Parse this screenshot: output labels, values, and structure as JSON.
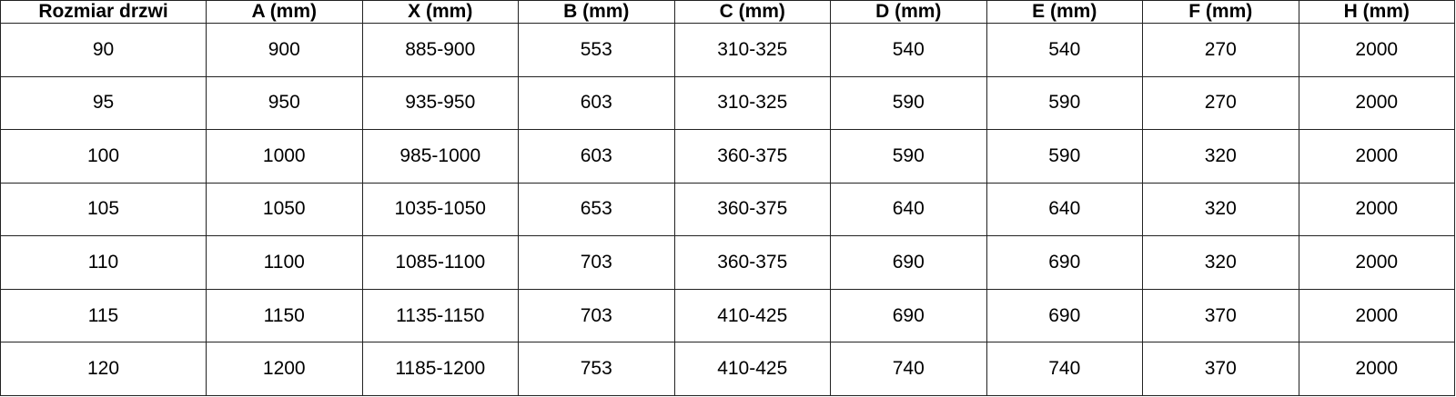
{
  "table": {
    "headers": [
      "Rozmiar drzwi",
      "A (mm)",
      "X (mm)",
      "B (mm)",
      "C (mm)",
      "D (mm)",
      "E (mm)",
      "F (mm)",
      "H (mm)"
    ],
    "rows": [
      [
        "90",
        "900",
        "885-900",
        "553",
        "310-325",
        "540",
        "540",
        "270",
        "2000"
      ],
      [
        "95",
        "950",
        "935-950",
        "603",
        "310-325",
        "590",
        "590",
        "270",
        "2000"
      ],
      [
        "100",
        "1000",
        "985-1000",
        "603",
        "360-375",
        "590",
        "590",
        "320",
        "2000"
      ],
      [
        "105",
        "1050",
        "1035-1050",
        "653",
        "360-375",
        "640",
        "640",
        "320",
        "2000"
      ],
      [
        "110",
        "1100",
        "1085-1100",
        "703",
        "360-375",
        "690",
        "690",
        "320",
        "2000"
      ],
      [
        "115",
        "1150",
        "1135-1150",
        "703",
        "410-425",
        "690",
        "690",
        "370",
        "2000"
      ],
      [
        "120",
        "1200",
        "1185-1200",
        "753",
        "410-425",
        "740",
        "740",
        "370",
        "2000"
      ]
    ]
  }
}
